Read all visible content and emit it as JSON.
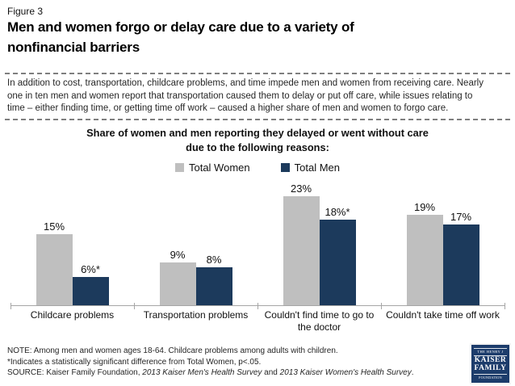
{
  "figure_label": "Figure 3",
  "title_lines": [
    "Men and women forgo or delay care due to a variety of",
    "nonfinancial barriers"
  ],
  "intro_lines": [
    "In addition to cost, transportation, childcare problems, and time impede men and women from receiving care. Nearly",
    "one in ten men and women report that transportation caused them to delay or put off care, while issues relating to",
    "time – either finding time, or getting time off work – caused a higher share of men and women to forgo care."
  ],
  "chart_data": {
    "type": "bar",
    "title_lines": [
      "Share of women and men reporting they delayed or went without care",
      "due to the following reasons:"
    ],
    "categories": [
      "Childcare problems",
      "Transportation problems",
      "Couldn't find time to go to the doctor",
      "Couldn't take time off work"
    ],
    "series": [
      {
        "name": "Total Women",
        "color": "#bfbfbf",
        "values": [
          15,
          9,
          23,
          19
        ],
        "value_labels": [
          "15%",
          "9%",
          "23%",
          "19%"
        ]
      },
      {
        "name": "Total Men",
        "color": "#1c3a5c",
        "values": [
          6,
          8,
          18,
          17
        ],
        "value_labels": [
          "6%*",
          "8%",
          "18%*",
          "17%"
        ]
      }
    ],
    "ylim": [
      0,
      25
    ],
    "grid": false,
    "legend_position": "top",
    "axis_color": "#a6a6a6"
  },
  "notes": {
    "note_line": "NOTE: Among men and women ages 18-64. Childcare problems among adults with children.",
    "significance_line": "*Indicates a statistically significant difference from Total Women,  p<.05.",
    "source_segments": [
      {
        "text": "SOURCE: Kaiser Family Foundation, ",
        "italic": false
      },
      {
        "text": "2013 Kaiser Men's Health Survey",
        "italic": true
      },
      {
        "text": " and ",
        "italic": false
      },
      {
        "text": "2013 Kaiser Women's Health Survey",
        "italic": true
      },
      {
        "text": ".",
        "italic": false
      }
    ]
  },
  "logo": {
    "lines": [
      "THE HENRY J",
      "KAISER",
      "FAMILY",
      "FOUNDATION"
    ]
  },
  "colors": {
    "bar_women": "#bfbfbf",
    "bar_men": "#1c3a5c",
    "axis": "#a6a6a6",
    "dashed_border": "#7f7f7f",
    "logo_bg": "#1c3c6b"
  }
}
